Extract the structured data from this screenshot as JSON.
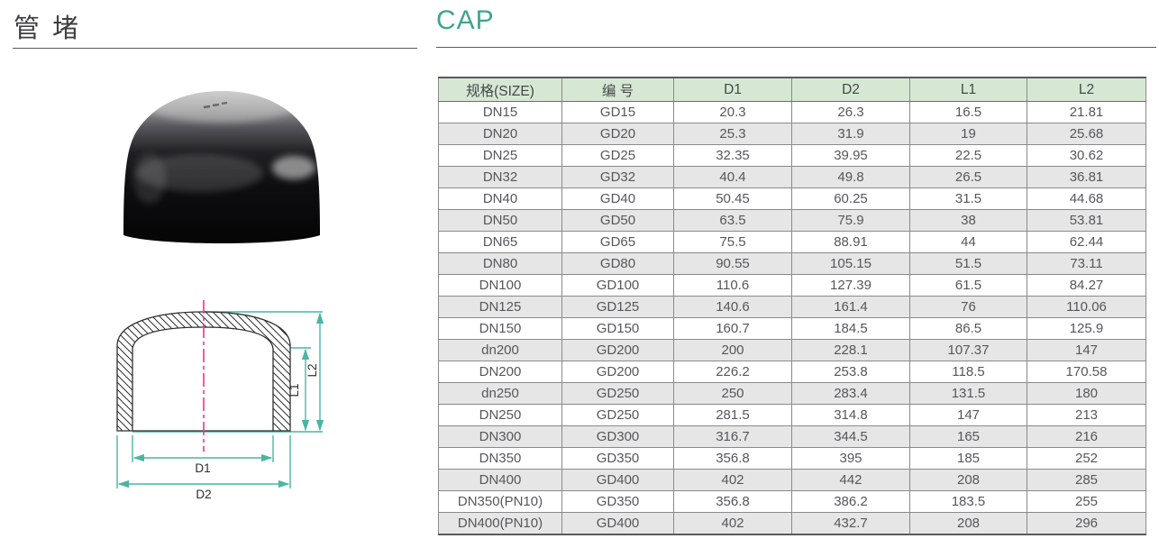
{
  "page": {
    "title_cn": "管 堵",
    "title_en": "CAP",
    "colors": {
      "accent_teal": "#3fa491",
      "dimension_teal": "#4ab5a2",
      "centerline_pink": "#e8378f",
      "table_header_green": "#d6e8d4",
      "alt_row_gray": "#e6e6e6",
      "grid_border": "#8a8a8a",
      "cap_photo_black": "#0a0a0c"
    }
  },
  "drawing": {
    "labels": {
      "d1": "D1",
      "d2": "D2",
      "l1": "L1",
      "l2": "L2"
    }
  },
  "table": {
    "headers": [
      "规格(SIZE)",
      "编 号",
      "D1",
      "D2",
      "L1",
      "L2"
    ],
    "rows": [
      [
        "DN15",
        "GD15",
        "20.3",
        "26.3",
        "16.5",
        "21.81"
      ],
      [
        "DN20",
        "GD20",
        "25.3",
        "31.9",
        "19",
        "25.68"
      ],
      [
        "DN25",
        "GD25",
        "32.35",
        "39.95",
        "22.5",
        "30.62"
      ],
      [
        "DN32",
        "GD32",
        "40.4",
        "49.8",
        "26.5",
        "36.81"
      ],
      [
        "DN40",
        "GD40",
        "50.45",
        "60.25",
        "31.5",
        "44.68"
      ],
      [
        "DN50",
        "GD50",
        "63.5",
        "75.9",
        "38",
        "53.81"
      ],
      [
        "DN65",
        "GD65",
        "75.5",
        "88.91",
        "44",
        "62.44"
      ],
      [
        "DN80",
        "GD80",
        "90.55",
        "105.15",
        "51.5",
        "73.11"
      ],
      [
        "DN100",
        "GD100",
        "110.6",
        "127.39",
        "61.5",
        "84.27"
      ],
      [
        "DN125",
        "GD125",
        "140.6",
        "161.4",
        "76",
        "110.06"
      ],
      [
        "DN150",
        "GD150",
        "160.7",
        "184.5",
        "86.5",
        "125.9"
      ],
      [
        "dn200",
        "GD200",
        "200",
        "228.1",
        "107.37",
        "147"
      ],
      [
        "DN200",
        "GD200",
        "226.2",
        "253.8",
        "118.5",
        "170.58"
      ],
      [
        "dn250",
        "GD250",
        "250",
        "283.4",
        "131.5",
        "180"
      ],
      [
        "DN250",
        "GD250",
        "281.5",
        "314.8",
        "147",
        "213"
      ],
      [
        "DN300",
        "GD300",
        "316.7",
        "344.5",
        "165",
        "216"
      ],
      [
        "DN350",
        "GD350",
        "356.8",
        "395",
        "185",
        "252"
      ],
      [
        "DN400",
        "GD400",
        "402",
        "442",
        "208",
        "285"
      ],
      [
        "DN350(PN10)",
        "GD350",
        "356.8",
        "386.2",
        "183.5",
        "255"
      ],
      [
        "DN400(PN10)",
        "GD400",
        "402",
        "432.7",
        "208",
        "296"
      ]
    ]
  }
}
